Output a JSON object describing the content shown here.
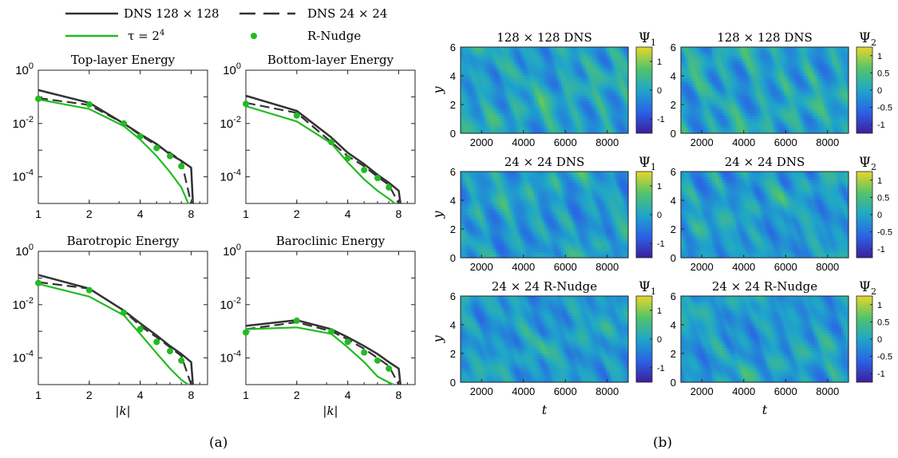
{
  "legend": {
    "items": [
      {
        "label": "DNS 128 × 128",
        "style": "solid",
        "color": "#333333"
      },
      {
        "label": "DNS 24 × 24",
        "style": "dashed",
        "color": "#333333"
      },
      {
        "label": "τ = 2",
        "sup": "4",
        "style": "solid",
        "color": "#22bb22"
      },
      {
        "label": "R-Nudge",
        "style": "marker",
        "color": "#22bb22"
      }
    ]
  },
  "panel_labels": {
    "a": "(a)",
    "b": "(b)"
  },
  "heatmap_colorscale": [
    "#3d1e9e",
    "#2a63e6",
    "#1fa6c9",
    "#52c46a",
    "#e8d628"
  ],
  "chart_data": [
    {
      "type": "line",
      "title": "Top-layer Energy",
      "xlabel": "",
      "xscale": "log",
      "yscale": "log",
      "xlim": [
        1,
        10
      ],
      "ylim": [
        1e-05,
        1
      ],
      "xticks": [
        "1",
        "2",
        "4",
        "8"
      ],
      "yticks": [
        "10^0",
        "10^-2",
        "10^-4"
      ],
      "series": [
        {
          "name": "DNS 128 × 128",
          "x": [
            1,
            2,
            3.2,
            4,
            5,
            6,
            7,
            8,
            8.2
          ],
          "y": [
            0.18,
            0.06,
            0.01,
            0.004,
            0.0017,
            0.0007,
            0.0004,
            0.00022,
            1e-05
          ]
        },
        {
          "name": "DNS 24 × 24",
          "x": [
            1,
            2,
            3.2,
            4,
            5,
            6,
            7,
            8
          ],
          "y": [
            0.09,
            0.05,
            0.01,
            0.0037,
            0.0015,
            0.0008,
            0.0004,
            1e-05
          ]
        },
        {
          "name": "τ = 2^4",
          "x": [
            1,
            2,
            3.2,
            4,
            5,
            6,
            7,
            7.7
          ],
          "y": [
            0.08,
            0.035,
            0.008,
            0.0025,
            0.0006,
            0.00015,
            4e-05,
            1e-05
          ]
        },
        {
          "name": "R-Nudge",
          "marker": true,
          "x": [
            1,
            2,
            3.2,
            4,
            5,
            6,
            7
          ],
          "y": [
            0.085,
            0.052,
            0.01,
            0.0033,
            0.0012,
            0.0006,
            0.00025
          ]
        }
      ]
    },
    {
      "type": "line",
      "title": "Bottom-layer Energy",
      "xlabel": "",
      "xscale": "log",
      "yscale": "log",
      "xlim": [
        1,
        10
      ],
      "ylim": [
        1e-05,
        1
      ],
      "xticks": [
        "1",
        "2",
        "4",
        "8"
      ],
      "yticks": [
        "10^0",
        "10^-2",
        "10^-4"
      ],
      "series": [
        {
          "name": "DNS 128 × 128",
          "x": [
            1,
            2,
            3.2,
            4,
            5,
            6,
            7,
            8,
            8.2
          ],
          "y": [
            0.11,
            0.03,
            0.003,
            0.0008,
            0.0003,
            0.00012,
            6e-05,
            3e-05,
            1e-05
          ]
        },
        {
          "name": "DNS 24 × 24",
          "x": [
            1,
            2,
            3.2,
            4,
            5,
            6,
            7,
            8
          ],
          "y": [
            0.06,
            0.025,
            0.002,
            0.0006,
            0.00025,
            0.0001,
            5e-05,
            1e-05
          ]
        },
        {
          "name": "τ = 2^4",
          "x": [
            1,
            2,
            3.2,
            4,
            5,
            6,
            7,
            7.6
          ],
          "y": [
            0.045,
            0.012,
            0.0018,
            0.00035,
            8e-05,
            3e-05,
            1.5e-05,
            1e-05
          ]
        },
        {
          "name": "R-Nudge",
          "marker": true,
          "x": [
            1,
            2,
            3.2,
            4,
            5,
            6,
            7
          ],
          "y": [
            0.055,
            0.02,
            0.002,
            0.0005,
            0.00018,
            9e-05,
            4e-05
          ]
        }
      ]
    },
    {
      "type": "line",
      "title": "Barotropic Energy",
      "xlabel": "|k|",
      "xscale": "log",
      "yscale": "log",
      "xlim": [
        1,
        10
      ],
      "ylim": [
        1e-05,
        1
      ],
      "xticks": [
        "1",
        "2",
        "4",
        "8"
      ],
      "yticks": [
        "10^0",
        "10^-2",
        "10^-4"
      ],
      "series": [
        {
          "name": "DNS 128 × 128",
          "x": [
            1,
            2,
            3.2,
            4,
            5,
            6,
            7,
            8,
            8.2
          ],
          "y": [
            0.13,
            0.04,
            0.006,
            0.002,
            0.0007,
            0.00028,
            0.00014,
            7e-05,
            1e-05
          ]
        },
        {
          "name": "DNS 24 × 24",
          "x": [
            1,
            2,
            3.2,
            4,
            5,
            6,
            7,
            8
          ],
          "y": [
            0.07,
            0.04,
            0.006,
            0.0016,
            0.0006,
            0.00025,
            0.00012,
            1e-05
          ]
        },
        {
          "name": "τ = 2^4",
          "x": [
            1,
            2,
            3.2,
            4,
            5,
            6,
            7,
            7.7
          ],
          "y": [
            0.06,
            0.02,
            0.004,
            0.0008,
            0.00015,
            4e-05,
            1.5e-05,
            1e-05
          ]
        },
        {
          "name": "R-Nudge",
          "marker": true,
          "x": [
            1,
            2,
            3.2,
            4,
            5,
            6,
            7
          ],
          "y": [
            0.065,
            0.035,
            0.005,
            0.0012,
            0.0004,
            0.00018,
            8e-05
          ]
        }
      ]
    },
    {
      "type": "line",
      "title": "Baroclinic Energy",
      "xlabel": "|k|",
      "xscale": "log",
      "yscale": "log",
      "xlim": [
        1,
        10
      ],
      "ylim": [
        1e-05,
        1
      ],
      "xticks": [
        "1",
        "2",
        "4",
        "8"
      ],
      "yticks": [
        "10^0",
        "10^-2",
        "10^-4"
      ],
      "series": [
        {
          "name": "DNS 128 × 128",
          "x": [
            1,
            2,
            3.2,
            4,
            5,
            6,
            7,
            8,
            8.2
          ],
          "y": [
            0.0016,
            0.0026,
            0.0012,
            0.0006,
            0.00028,
            0.00014,
            7e-05,
            4e-05,
            1e-05
          ]
        },
        {
          "name": "DNS 24 × 24",
          "x": [
            1,
            2,
            3.2,
            4,
            5,
            6,
            7,
            8
          ],
          "y": [
            0.0012,
            0.0022,
            0.001,
            0.0005,
            0.00022,
            0.0001,
            5e-05,
            1e-05
          ]
        },
        {
          "name": "τ = 2^4",
          "x": [
            1,
            2,
            3.2,
            4,
            5,
            6,
            7,
            7.5
          ],
          "y": [
            0.0012,
            0.0014,
            0.0008,
            0.00025,
            7e-05,
            2e-05,
            1.2e-05,
            1e-05
          ]
        },
        {
          "name": "R-Nudge",
          "marker": true,
          "x": [
            1,
            2,
            3.2,
            4,
            5,
            6,
            7
          ],
          "y": [
            0.0009,
            0.0025,
            0.001,
            0.0004,
            0.00016,
            8e-05,
            4e-05
          ]
        }
      ]
    },
    {
      "type": "heatmap",
      "title": "128 × 128 DNS",
      "xlabel": "",
      "ylabel": "y",
      "xlim": [
        1000,
        9000
      ],
      "ylim": [
        0,
        6
      ],
      "xticks": [
        "2000",
        "4000",
        "6000",
        "8000"
      ],
      "yticks": [
        "0",
        "2",
        "4",
        "6"
      ],
      "colorbar_title": "Ψ",
      "colorbar_sub": "1",
      "colorbar_ticks": [
        "1",
        "0",
        "-1"
      ],
      "clim": [
        -1.5,
        1.5
      ]
    },
    {
      "type": "heatmap",
      "title": "128 × 128 DNS",
      "xlabel": "",
      "ylabel": "",
      "xlim": [
        1000,
        9000
      ],
      "ylim": [
        0,
        6
      ],
      "xticks": [
        "2000",
        "4000",
        "6000",
        "8000"
      ],
      "yticks": [
        "0",
        "2",
        "4",
        "6"
      ],
      "colorbar_title": "Ψ",
      "colorbar_sub": "2",
      "colorbar_ticks": [
        "1",
        "0.5",
        "0",
        "-0.5",
        "-1"
      ],
      "clim": [
        -1.25,
        1.25
      ]
    },
    {
      "type": "heatmap",
      "title": "24 × 24 DNS",
      "xlabel": "",
      "ylabel": "y",
      "xlim": [
        1000,
        9000
      ],
      "ylim": [
        0,
        6
      ],
      "xticks": [
        "2000",
        "4000",
        "6000",
        "8000"
      ],
      "yticks": [
        "0",
        "2",
        "4",
        "6"
      ],
      "colorbar_title": "Ψ",
      "colorbar_sub": "1",
      "colorbar_ticks": [
        "1",
        "0",
        "-1"
      ],
      "clim": [
        -1.5,
        1.5
      ]
    },
    {
      "type": "heatmap",
      "title": "24 × 24 DNS",
      "xlabel": "",
      "ylabel": "",
      "xlim": [
        1000,
        9000
      ],
      "ylim": [
        0,
        6
      ],
      "xticks": [
        "2000",
        "4000",
        "6000",
        "8000"
      ],
      "yticks": [
        "0",
        "2",
        "4",
        "6"
      ],
      "colorbar_title": "Ψ",
      "colorbar_sub": "2",
      "colorbar_ticks": [
        "1",
        "0.5",
        "0",
        "-0.5",
        "-1"
      ],
      "clim": [
        -1.25,
        1.25
      ]
    },
    {
      "type": "heatmap",
      "title": "24 × 24 R-Nudge",
      "xlabel": "t",
      "ylabel": "y",
      "xlim": [
        1000,
        9000
      ],
      "ylim": [
        0,
        6
      ],
      "xticks": [
        "2000",
        "4000",
        "6000",
        "8000"
      ],
      "yticks": [
        "0",
        "2",
        "4",
        "6"
      ],
      "colorbar_title": "Ψ",
      "colorbar_sub": "1",
      "colorbar_ticks": [
        "1",
        "0",
        "-1"
      ],
      "clim": [
        -1.5,
        1.5
      ]
    },
    {
      "type": "heatmap",
      "title": "24 × 24 R-Nudge",
      "xlabel": "t",
      "ylabel": "",
      "xlim": [
        1000,
        9000
      ],
      "ylim": [
        0,
        6
      ],
      "xticks": [
        "2000",
        "4000",
        "6000",
        "8000"
      ],
      "yticks": [
        "0",
        "2",
        "4",
        "6"
      ],
      "colorbar_title": "Ψ",
      "colorbar_sub": "2",
      "colorbar_ticks": [
        "1",
        "0.5",
        "0",
        "-0.5",
        "-1"
      ],
      "clim": [
        -1.25,
        1.25
      ]
    }
  ]
}
